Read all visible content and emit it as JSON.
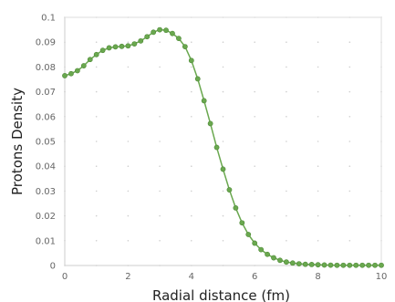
{
  "chart_data": {
    "type": "line",
    "title": "",
    "xlabel": "Radial distance (fm)",
    "ylabel": "Protons Density",
    "xlim": [
      0,
      10
    ],
    "ylim": [
      0,
      0.1
    ],
    "grid": true,
    "legend": "none",
    "x_ticks": [
      "0",
      "2",
      "4",
      "6",
      "8",
      "10"
    ],
    "y_ticks": [
      "0",
      "0.01",
      "0.02",
      "0.03",
      "0.04",
      "0.05",
      "0.06",
      "0.07",
      "0.08",
      "0.09",
      "0.1"
    ],
    "series": [
      {
        "color": "#6aa84f",
        "marker": "circle",
        "x": [
          0.0,
          0.2,
          0.4,
          0.6,
          0.8,
          1.0,
          1.2,
          1.4,
          1.6,
          1.8,
          2.0,
          2.2,
          2.4,
          2.6,
          2.8,
          3.0,
          3.2,
          3.4,
          3.6,
          3.8,
          4.0,
          4.2,
          4.4,
          4.6,
          4.8,
          5.0,
          5.2,
          5.4,
          5.6,
          5.8,
          6.0,
          6.2,
          6.4,
          6.6,
          6.8,
          7.0,
          7.2,
          7.4,
          7.6,
          7.8,
          8.0,
          8.2,
          8.4,
          8.6,
          8.8,
          9.0,
          9.2,
          9.4,
          9.6,
          9.8,
          10.0
        ],
        "y": [
          0.0765,
          0.0773,
          0.0785,
          0.0805,
          0.083,
          0.085,
          0.0867,
          0.0877,
          0.0881,
          0.0883,
          0.0885,
          0.0893,
          0.0905,
          0.0922,
          0.094,
          0.095,
          0.0948,
          0.0935,
          0.0915,
          0.0882,
          0.0826,
          0.0752,
          0.0664,
          0.0572,
          0.0476,
          0.0388,
          0.0305,
          0.0232,
          0.0172,
          0.0125,
          0.009,
          0.0064,
          0.0045,
          0.0031,
          0.0021,
          0.0014,
          0.001,
          0.0007,
          0.0005,
          0.0004,
          0.0003,
          0.0002,
          0.00015,
          0.0001,
          0.0001,
          0.0001,
          0.0001,
          0.0001,
          0.0001,
          0.0001,
          0.0001
        ]
      }
    ]
  }
}
